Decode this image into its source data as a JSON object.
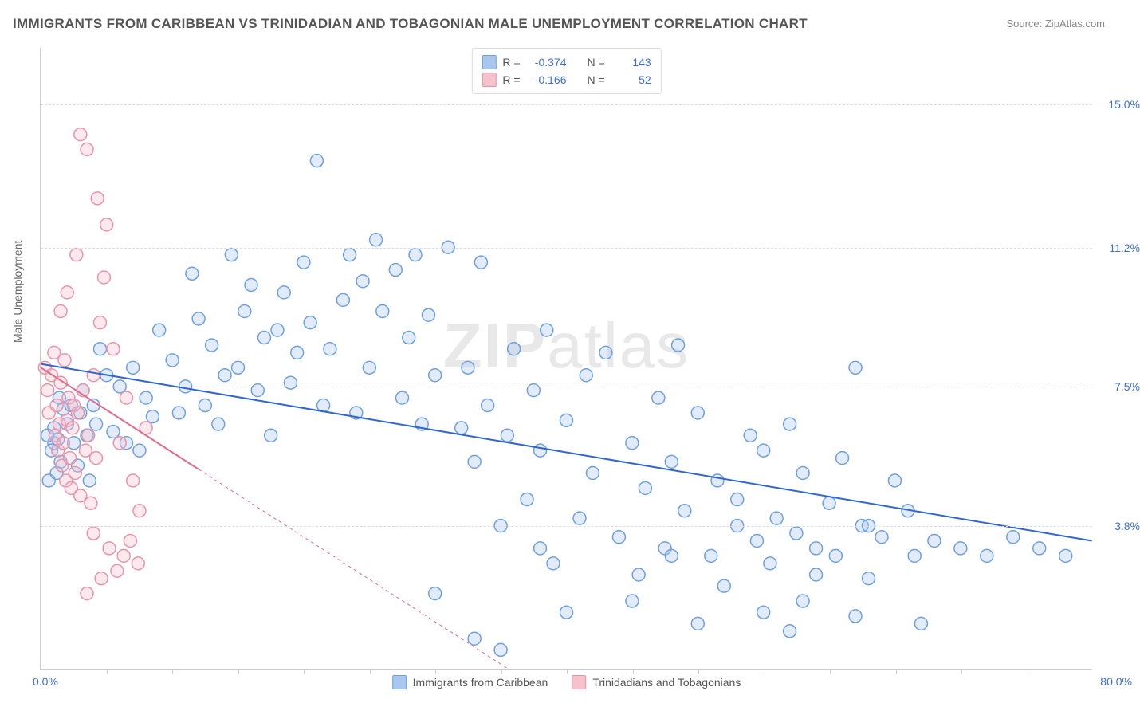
{
  "title": "IMMIGRANTS FROM CARIBBEAN VS TRINIDADIAN AND TOBAGONIAN MALE UNEMPLOYMENT CORRELATION CHART",
  "source": "Source: ZipAtlas.com",
  "watermark": "ZIPatlas",
  "chart": {
    "type": "scatter",
    "y_label": "Male Unemployment",
    "xlim": [
      0.0,
      80.0
    ],
    "ylim": [
      0.0,
      16.5
    ],
    "x_tick_labels": {
      "start": "0.0%",
      "end": "80.0%"
    },
    "y_ticks": [
      {
        "v": 3.8,
        "label": "3.8%"
      },
      {
        "v": 7.5,
        "label": "7.5%"
      },
      {
        "v": 11.2,
        "label": "11.2%"
      },
      {
        "v": 15.0,
        "label": "15.0%"
      }
    ],
    "x_minor_ticks": [
      5,
      10,
      15,
      20,
      25,
      30,
      35,
      40,
      45,
      50,
      55,
      60,
      65,
      70,
      75
    ],
    "background_color": "#ffffff",
    "grid_color": "#dddddd",
    "marker_radius": 8,
    "marker_fill_opacity": 0.35,
    "marker_stroke_width": 1.5,
    "series": [
      {
        "name": "Immigrants from Caribbean",
        "color_fill": "#a9c7ee",
        "color_stroke": "#6fa0e0",
        "trend": {
          "y_at_x0": 8.1,
          "y_at_xmax": 3.4,
          "solid_until_x": 80,
          "line_color": "#2f66d0",
          "line_width": 2
        },
        "R": "-0.374",
        "N": "143",
        "points": [
          [
            1,
            6.0
          ],
          [
            1,
            6.4
          ],
          [
            1.3,
            6.1
          ],
          [
            1.5,
            5.5
          ],
          [
            1.7,
            6.9
          ],
          [
            0.8,
            5.8
          ],
          [
            0.5,
            6.2
          ],
          [
            0.6,
            5.0
          ],
          [
            1.2,
            5.2
          ],
          [
            1.4,
            7.2
          ],
          [
            2,
            6.5
          ],
          [
            2.3,
            7.0
          ],
          [
            2.5,
            6.0
          ],
          [
            2.8,
            5.4
          ],
          [
            3,
            6.8
          ],
          [
            3.2,
            7.4
          ],
          [
            3.5,
            6.2
          ],
          [
            3.7,
            5.0
          ],
          [
            4,
            7.0
          ],
          [
            4.2,
            6.5
          ],
          [
            4.5,
            8.5
          ],
          [
            5,
            7.8
          ],
          [
            5.5,
            6.3
          ],
          [
            6,
            7.5
          ],
          [
            6.5,
            6.0
          ],
          [
            7,
            8.0
          ],
          [
            7.5,
            5.8
          ],
          [
            8,
            7.2
          ],
          [
            8.5,
            6.7
          ],
          [
            9,
            9.0
          ],
          [
            10,
            8.2
          ],
          [
            10.5,
            6.8
          ],
          [
            11,
            7.5
          ],
          [
            11.5,
            10.5
          ],
          [
            12,
            9.3
          ],
          [
            12.5,
            7.0
          ],
          [
            13,
            8.6
          ],
          [
            13.5,
            6.5
          ],
          [
            14,
            7.8
          ],
          [
            14.5,
            11.0
          ],
          [
            15,
            8.0
          ],
          [
            15.5,
            9.5
          ],
          [
            16,
            10.2
          ],
          [
            16.5,
            7.4
          ],
          [
            17,
            8.8
          ],
          [
            17.5,
            6.2
          ],
          [
            18,
            9.0
          ],
          [
            18.5,
            10.0
          ],
          [
            19,
            7.6
          ],
          [
            19.5,
            8.4
          ],
          [
            20,
            10.8
          ],
          [
            20.5,
            9.2
          ],
          [
            21,
            13.5
          ],
          [
            21.5,
            7.0
          ],
          [
            22,
            8.5
          ],
          [
            23,
            9.8
          ],
          [
            23.5,
            11.0
          ],
          [
            24,
            6.8
          ],
          [
            24.5,
            10.3
          ],
          [
            25,
            8.0
          ],
          [
            25.5,
            11.4
          ],
          [
            26,
            9.5
          ],
          [
            27,
            10.6
          ],
          [
            27.5,
            7.2
          ],
          [
            28,
            8.8
          ],
          [
            28.5,
            11.0
          ],
          [
            29,
            6.5
          ],
          [
            29.5,
            9.4
          ],
          [
            30,
            7.8
          ],
          [
            31,
            11.2
          ],
          [
            32,
            6.4
          ],
          [
            32.5,
            8.0
          ],
          [
            33,
            5.5
          ],
          [
            33.5,
            10.8
          ],
          [
            34,
            7.0
          ],
          [
            35,
            3.8
          ],
          [
            35.5,
            6.2
          ],
          [
            36,
            8.5
          ],
          [
            37,
            4.5
          ],
          [
            37.5,
            7.4
          ],
          [
            38,
            5.8
          ],
          [
            38.5,
            9.0
          ],
          [
            39,
            2.8
          ],
          [
            40,
            6.6
          ],
          [
            41,
            4.0
          ],
          [
            41.5,
            7.8
          ],
          [
            42,
            5.2
          ],
          [
            43,
            8.4
          ],
          [
            44,
            3.5
          ],
          [
            45,
            6.0
          ],
          [
            45.5,
            2.5
          ],
          [
            46,
            4.8
          ],
          [
            47,
            7.2
          ],
          [
            47.5,
            3.2
          ],
          [
            48,
            5.5
          ],
          [
            48.5,
            8.6
          ],
          [
            49,
            4.2
          ],
          [
            50,
            6.8
          ],
          [
            51,
            3.0
          ],
          [
            51.5,
            5.0
          ],
          [
            52,
            2.2
          ],
          [
            53,
            4.5
          ],
          [
            54,
            6.2
          ],
          [
            54.5,
            3.4
          ],
          [
            55,
            5.8
          ],
          [
            55.5,
            2.8
          ],
          [
            56,
            4.0
          ],
          [
            57,
            6.5
          ],
          [
            57.5,
            3.6
          ],
          [
            58,
            5.2
          ],
          [
            59,
            2.5
          ],
          [
            60,
            4.4
          ],
          [
            60.5,
            3.0
          ],
          [
            61,
            5.6
          ],
          [
            62,
            8.0
          ],
          [
            62.5,
            3.8
          ],
          [
            63,
            2.4
          ],
          [
            64,
            3.5
          ],
          [
            65,
            5.0
          ],
          [
            66,
            4.2
          ],
          [
            66.5,
            3.0
          ],
          [
            58,
            1.8
          ],
          [
            62,
            1.4
          ],
          [
            57,
            1.0
          ],
          [
            35,
            0.5
          ],
          [
            33,
            0.8
          ],
          [
            40,
            1.5
          ],
          [
            45,
            1.8
          ],
          [
            50,
            1.2
          ],
          [
            55,
            1.5
          ],
          [
            68,
            3.4
          ],
          [
            70,
            3.2
          ],
          [
            72,
            3.0
          ],
          [
            74,
            3.5
          ],
          [
            76,
            3.2
          ],
          [
            78,
            3.0
          ],
          [
            67,
            1.2
          ],
          [
            63,
            3.8
          ],
          [
            59,
            3.2
          ],
          [
            53,
            3.8
          ],
          [
            48,
            3.0
          ],
          [
            38,
            3.2
          ],
          [
            30,
            2.0
          ]
        ]
      },
      {
        "name": "Trinidadians and Tobagonians",
        "color_fill": "#f6c0cc",
        "color_stroke": "#e893aa",
        "trend": {
          "y_at_x0": 8.0,
          "y_at_xmax": -10.0,
          "solid_until_x": 12,
          "line_color": "#e06b8b",
          "line_width": 2
        },
        "R": "-0.166",
        "N": "52",
        "points": [
          [
            0.3,
            8.0
          ],
          [
            0.5,
            7.4
          ],
          [
            0.6,
            6.8
          ],
          [
            0.8,
            7.8
          ],
          [
            1.0,
            8.4
          ],
          [
            1.1,
            6.2
          ],
          [
            1.2,
            7.0
          ],
          [
            1.3,
            5.8
          ],
          [
            1.4,
            6.5
          ],
          [
            1.5,
            7.6
          ],
          [
            1.6,
            5.4
          ],
          [
            1.7,
            6.0
          ],
          [
            1.8,
            8.2
          ],
          [
            1.9,
            5.0
          ],
          [
            2.0,
            6.6
          ],
          [
            2.1,
            7.2
          ],
          [
            2.2,
            5.6
          ],
          [
            2.3,
            4.8
          ],
          [
            2.4,
            6.4
          ],
          [
            2.5,
            7.0
          ],
          [
            2.6,
            5.2
          ],
          [
            2.8,
            6.8
          ],
          [
            3.0,
            4.6
          ],
          [
            3.2,
            7.4
          ],
          [
            3.4,
            5.8
          ],
          [
            3.6,
            6.2
          ],
          [
            3.8,
            4.4
          ],
          [
            4.0,
            7.8
          ],
          [
            4.2,
            5.6
          ],
          [
            4.5,
            9.2
          ],
          [
            4.8,
            10.4
          ],
          [
            5.0,
            11.8
          ],
          [
            4.3,
            12.5
          ],
          [
            3.5,
            13.8
          ],
          [
            3.0,
            14.2
          ],
          [
            2.7,
            11.0
          ],
          [
            2.0,
            10.0
          ],
          [
            1.5,
            9.5
          ],
          [
            5.5,
            8.5
          ],
          [
            6.0,
            6.0
          ],
          [
            6.5,
            7.2
          ],
          [
            7.0,
            5.0
          ],
          [
            7.5,
            4.2
          ],
          [
            8.0,
            6.4
          ],
          [
            5.2,
            3.2
          ],
          [
            6.3,
            3.0
          ],
          [
            5.8,
            2.6
          ],
          [
            6.8,
            3.4
          ],
          [
            7.4,
            2.8
          ],
          [
            4.6,
            2.4
          ],
          [
            3.5,
            2.0
          ],
          [
            4.0,
            3.6
          ]
        ]
      }
    ],
    "legend_top_labels": {
      "R": "R =",
      "N": "N ="
    },
    "legend_bottom": [
      {
        "label": "Immigrants from Caribbean",
        "fill": "#a9c7ee",
        "stroke": "#6fa0e0"
      },
      {
        "label": "Trinidadians and Tobagonians",
        "fill": "#f6c0cc",
        "stroke": "#e893aa"
      }
    ]
  }
}
